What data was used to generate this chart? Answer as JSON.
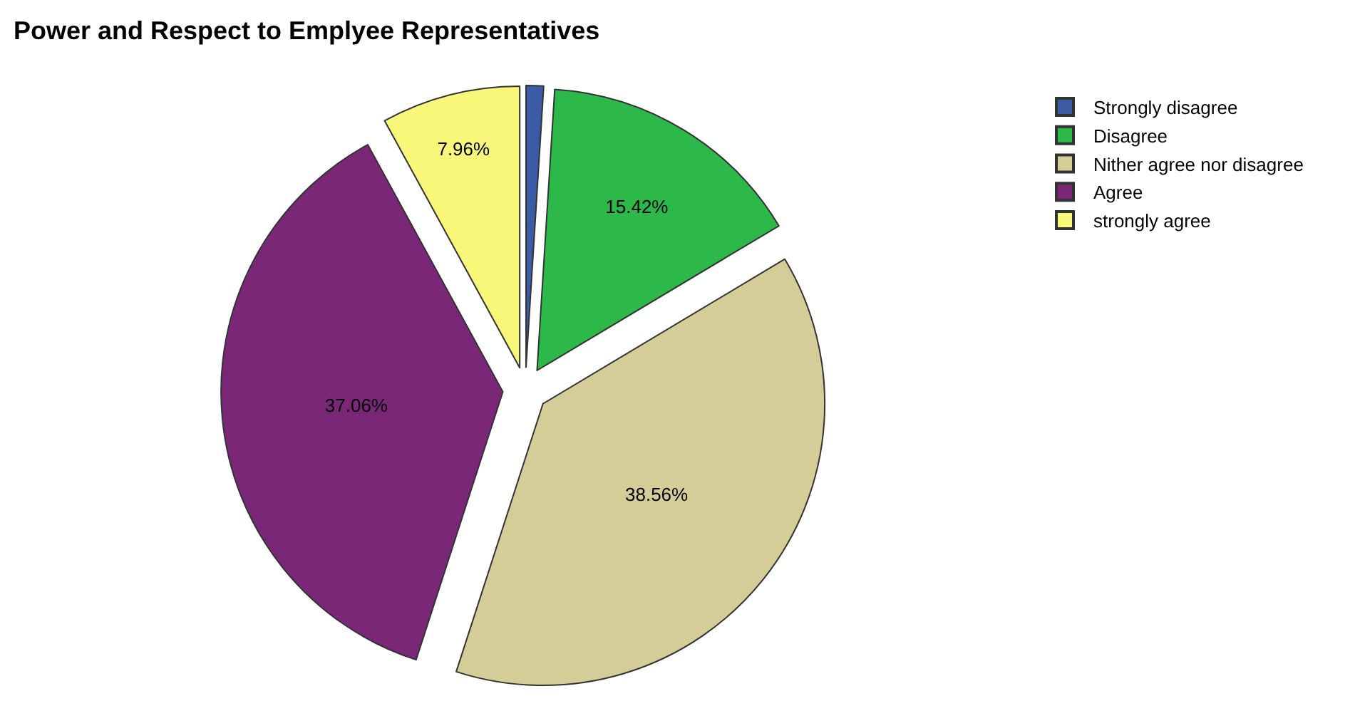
{
  "chart_data": {
    "type": "pie",
    "title": "Power and Respect to Emplyee Representatives",
    "categories": [
      "Strongly disagree",
      "Disagree",
      "Nither agree nor disagree",
      "Agree",
      "strongly agree"
    ],
    "values": [
      1.0,
      15.42,
      38.56,
      37.06,
      7.96
    ],
    "value_labels": [
      null,
      "15.42%",
      "38.56%",
      "37.06%",
      "7.96%"
    ],
    "colors": [
      "#3b5ba5",
      "#2db84a",
      "#d4cd98",
      "#7b2778",
      "#f8f77a"
    ],
    "legend": "top right"
  }
}
